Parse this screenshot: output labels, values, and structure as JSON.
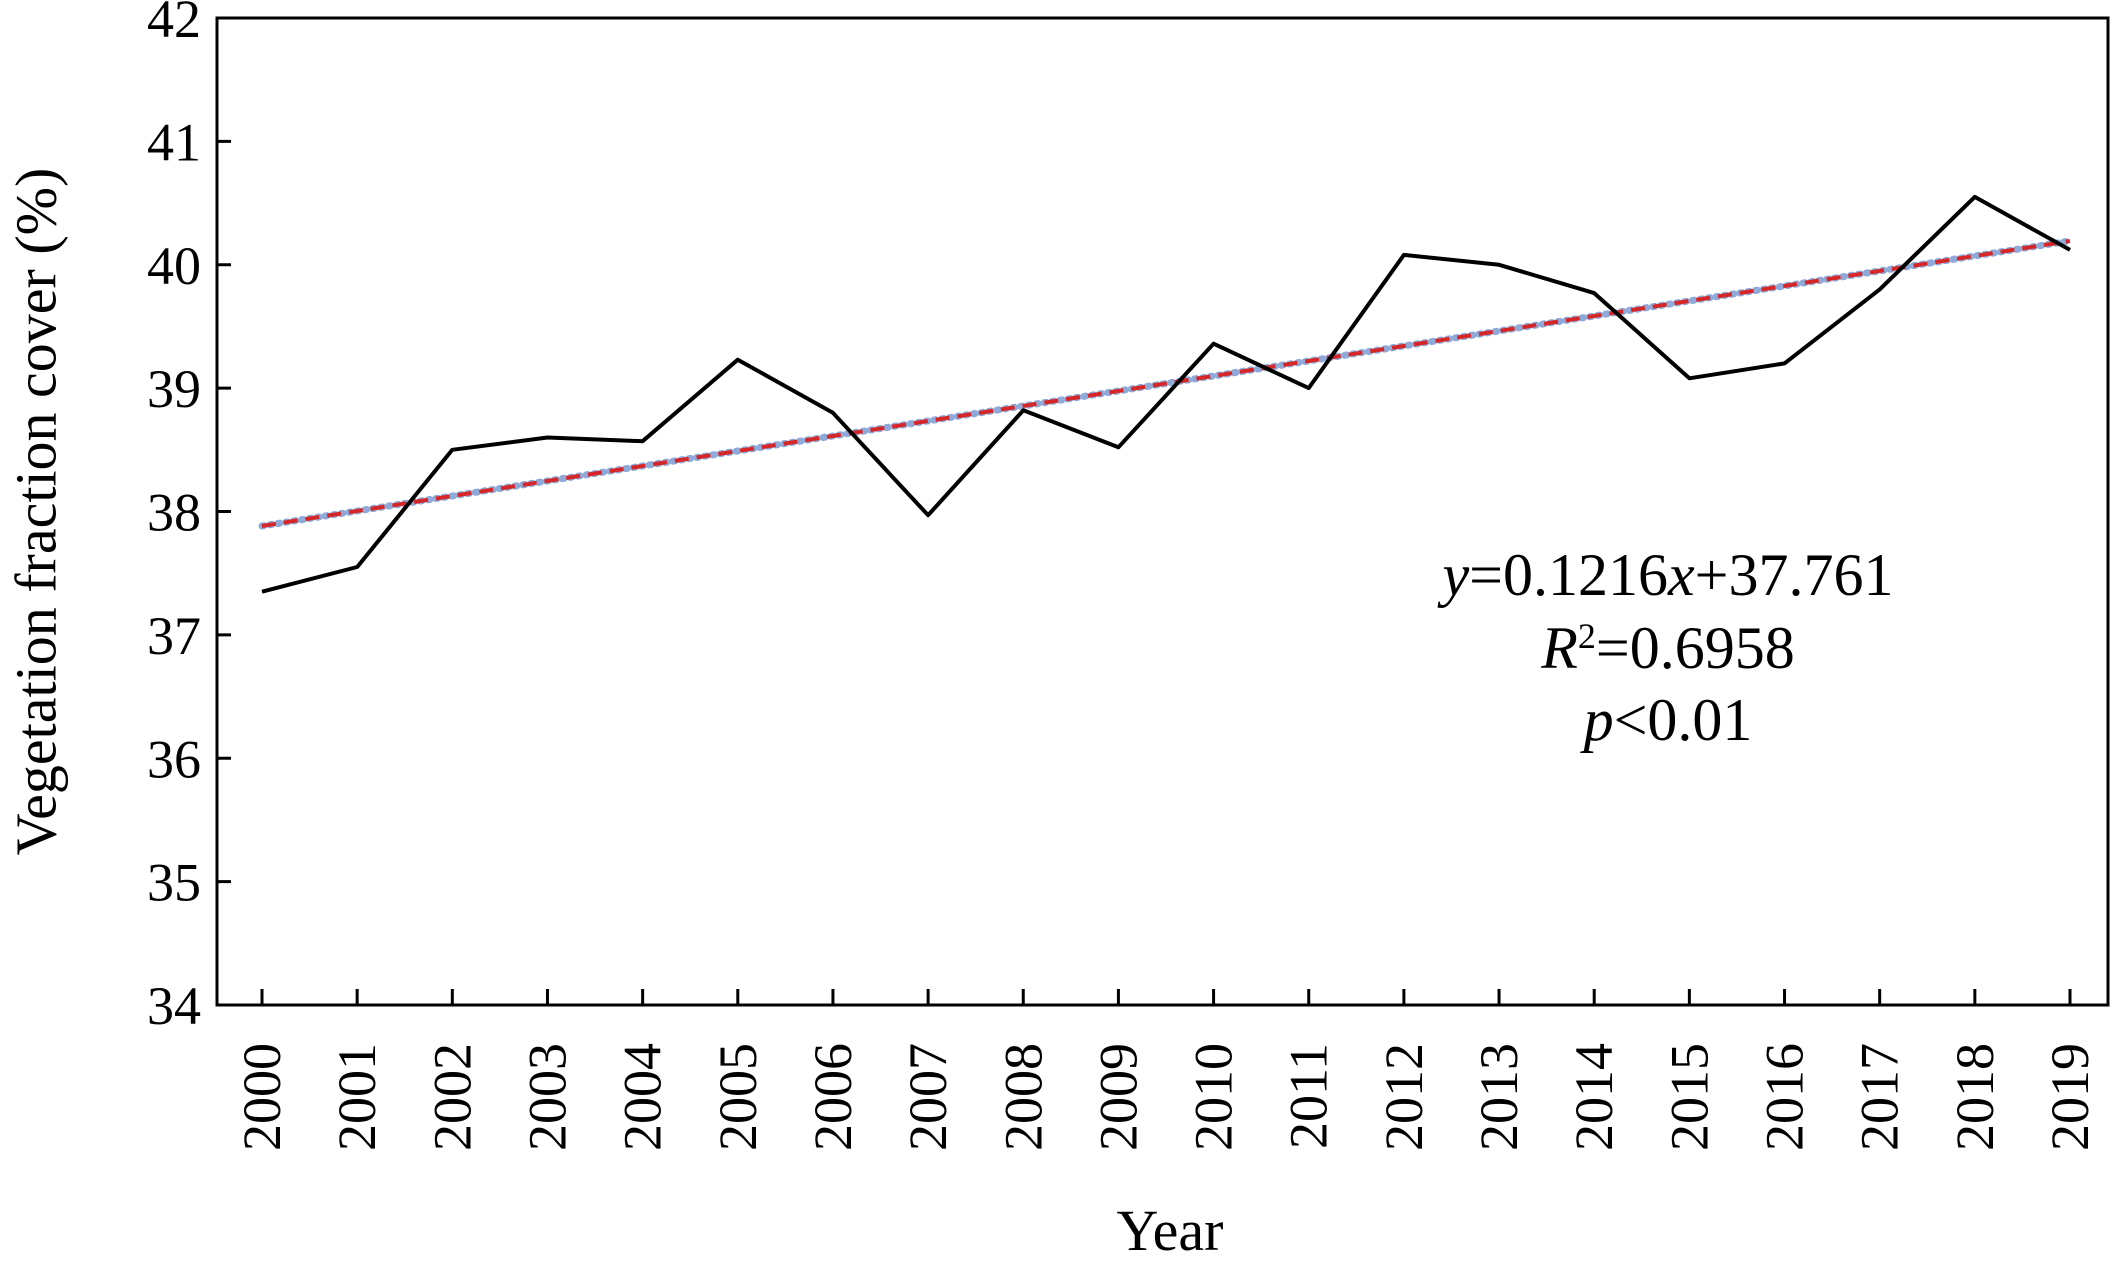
{
  "chart_data": {
    "type": "line",
    "xlabel": "Year",
    "ylabel": "Vegetation fraction cover (%)",
    "ylim": [
      34,
      42
    ],
    "yticks": [
      34,
      35,
      36,
      37,
      38,
      39,
      40,
      41,
      42
    ],
    "categories": [
      "2000",
      "2001",
      "2002",
      "2003",
      "2004",
      "2005",
      "2006",
      "2007",
      "2008",
      "2009",
      "2010",
      "2011",
      "2012",
      "2013",
      "2014",
      "2015",
      "2016",
      "2017",
      "2018",
      "2019"
    ],
    "series": [
      {
        "values": [
          37.35,
          37.55,
          38.5,
          38.6,
          38.57,
          39.23,
          38.8,
          37.97,
          38.82,
          38.52,
          39.36,
          39.0,
          40.08,
          40.0,
          39.77,
          39.08,
          39.2,
          39.8,
          40.55,
          40.12
        ],
        "color": "#000000",
        "style": "solid"
      }
    ],
    "trendline": {
      "slope": 0.1216,
      "intercept": 37.761,
      "color": "#d62728",
      "dot_color": "#8fa9d8",
      "style": "dashed"
    },
    "annotation": {
      "line1": {
        "var": "y",
        "a": "=0.1216",
        "var2": "x",
        "b": "+37.761"
      },
      "line2": {
        "var": "R",
        "sup": "2",
        "rest": "=0.6958"
      },
      "line3": {
        "var": "p",
        "rest": "<0.01"
      }
    },
    "grid": false,
    "legend": "none"
  }
}
